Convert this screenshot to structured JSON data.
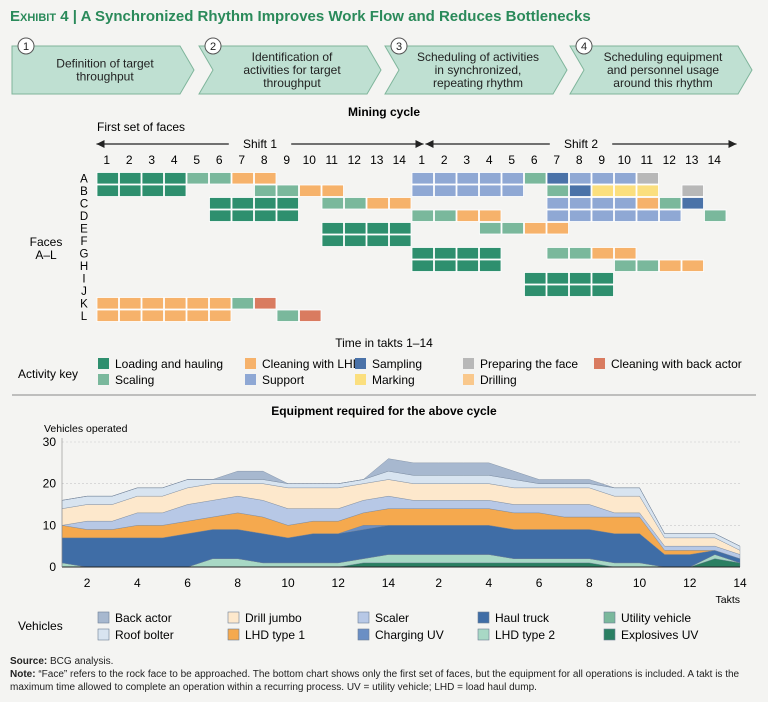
{
  "header": {
    "exhibit": "Exhibit 4",
    "separator": "|",
    "title": "A Synchronized Rhythm Improves Work Flow and Reduces Bottlenecks"
  },
  "steps": [
    {
      "num": "1",
      "text": [
        "Definition of target",
        "throughput"
      ]
    },
    {
      "num": "2",
      "text": [
        "Identification of",
        "activities for target",
        "throughput"
      ]
    },
    {
      "num": "3",
      "text": [
        "Scheduling of activities",
        "in synchronized,",
        "repeating rhythm"
      ]
    },
    {
      "num": "4",
      "text": [
        "Scheduling equipment",
        "and personnel usage",
        "around this rhythm"
      ]
    }
  ],
  "gantt": {
    "title": "Mining cycle",
    "first_set": "First set of faces",
    "shift1": "Shift 1",
    "shift2": "Shift 2",
    "faces": [
      "A",
      "B",
      "C",
      "D",
      "E",
      "F",
      "G",
      "H",
      "I",
      "J",
      "K",
      "L"
    ],
    "faces_label": [
      "Faces",
      "A–L"
    ],
    "takts": [
      "1",
      "2",
      "3",
      "4",
      "5",
      "6",
      "7",
      "8",
      "9",
      "10",
      "11",
      "12",
      "13",
      "14"
    ],
    "xlabel": "Time in takts 1–14",
    "activity_key_label": "Activity key",
    "colors": {
      "load": "#2e8f6e",
      "clean_lhd": "#f6b26b",
      "sampling": "#4a72a8",
      "prep": "#b8b8b8",
      "clean_back": "#d97b60",
      "scaling": "#7ab89c",
      "support": "#8fa8d4",
      "marking": "#fbdf7e",
      "drilling": "#f9c88c"
    },
    "legend": [
      {
        "key": "load",
        "label": "Loading and hauling"
      },
      {
        "key": "clean_lhd",
        "label": "Cleaning with LHD"
      },
      {
        "key": "sampling",
        "label": "Sampling"
      },
      {
        "key": "prep",
        "label": "Preparing the face"
      },
      {
        "key": "clean_back",
        "label": "Cleaning with back actor"
      },
      {
        "key": "scaling",
        "label": "Scaling"
      },
      {
        "key": "support",
        "label": "Support"
      },
      {
        "key": "marking",
        "label": "Marking"
      },
      {
        "key": "drilling",
        "label": "Drilling"
      }
    ],
    "rows": [
      [
        [
          "load",
          1,
          4
        ],
        [
          "scaling",
          5,
          6
        ],
        [
          "clean_lhd",
          7,
          8
        ],
        [
          "support",
          15,
          19
        ],
        [
          "scaling",
          20,
          20
        ],
        [
          "sampling",
          21,
          21
        ],
        [
          "support",
          22,
          25
        ],
        [
          "prep",
          25,
          25
        ]
      ],
      [
        [
          "load",
          1,
          4
        ],
        [
          "scaling",
          8,
          9
        ],
        [
          "clean_lhd",
          10,
          11
        ],
        [
          "support",
          15,
          19
        ],
        [
          "scaling",
          21,
          21
        ],
        [
          "sampling",
          22,
          22
        ],
        [
          "marking",
          23,
          25
        ],
        [
          "prep",
          27,
          27
        ]
      ],
      [
        [
          "load",
          6,
          9
        ],
        [
          "scaling",
          11,
          12
        ],
        [
          "clean_lhd",
          13,
          14
        ],
        [
          "support",
          21,
          24
        ],
        [
          "clean_lhd",
          25,
          25
        ],
        [
          "scaling",
          26,
          26
        ],
        [
          "sampling",
          27,
          27
        ]
      ],
      [
        [
          "load",
          6,
          9
        ],
        [
          "scaling",
          15,
          16
        ],
        [
          "clean_lhd",
          17,
          18
        ],
        [
          "support",
          21,
          26
        ],
        [
          "scaling",
          28,
          28
        ]
      ],
      [
        [
          "load",
          11,
          14
        ],
        [
          "scaling",
          18,
          19
        ],
        [
          "clean_lhd",
          20,
          21
        ]
      ],
      [
        [
          "load",
          11,
          14
        ]
      ],
      [
        [
          "load",
          15,
          18
        ],
        [
          "scaling",
          21,
          22
        ],
        [
          "clean_lhd",
          23,
          24
        ]
      ],
      [
        [
          "load",
          15,
          18
        ],
        [
          "scaling",
          24,
          25
        ],
        [
          "clean_lhd",
          26,
          27
        ]
      ],
      [
        [
          "load",
          20,
          23
        ]
      ],
      [
        [
          "load",
          20,
          23
        ]
      ],
      [
        [
          "clean_lhd",
          1,
          6
        ],
        [
          "scaling",
          7,
          7
        ],
        [
          "clean_back",
          8,
          8
        ]
      ],
      [
        [
          "clean_lhd",
          1,
          6
        ],
        [
          "scaling",
          9,
          9
        ],
        [
          "clean_back",
          10,
          10
        ]
      ]
    ]
  },
  "equipment": {
    "title": "Equipment required for the above cycle",
    "ylabel": "Vehicles operated",
    "xlabel": "Takts",
    "vehicles_label": "Vehicles"
  },
  "chart_data": {
    "type": "area",
    "title": "Equipment required for the above cycle",
    "ylabel": "Vehicles operated",
    "xlabel": "Takts",
    "ylim": [
      0,
      30
    ],
    "yticks": [
      0,
      10,
      20,
      30
    ],
    "x_tick_labels": [
      "2",
      "4",
      "6",
      "8",
      "10",
      "12",
      "14",
      "2",
      "4",
      "6",
      "8",
      "10",
      "12",
      "14"
    ],
    "x": [
      1,
      2,
      3,
      4,
      5,
      6,
      7,
      8,
      9,
      10,
      11,
      12,
      13,
      14,
      15,
      16,
      17,
      18,
      19,
      20,
      21,
      22,
      23,
      24,
      25,
      26,
      27,
      28
    ],
    "stacked": true,
    "series": [
      {
        "name": "Explosives UV",
        "color": "#2a7f62",
        "values": [
          0,
          0,
          0,
          0,
          0,
          0,
          0,
          0,
          0,
          0,
          0,
          0,
          1,
          1,
          1,
          1,
          1,
          1,
          1,
          1,
          1,
          1,
          0,
          0,
          0,
          0,
          2,
          1
        ]
      },
      {
        "name": "LHD type 2",
        "color": "#a8d8c5",
        "values": [
          1,
          0,
          0,
          0,
          0,
          0,
          2,
          2,
          1,
          1,
          1,
          1,
          1,
          2,
          2,
          2,
          2,
          2,
          1,
          1,
          1,
          1,
          1,
          1,
          0,
          0,
          1,
          0
        ]
      },
      {
        "name": "Utility vehicle",
        "color": "#7ab89c",
        "values": [
          0,
          0,
          0,
          0,
          0,
          0,
          0,
          0,
          0,
          0,
          0,
          0,
          0,
          0,
          0,
          0,
          0,
          0,
          0,
          0,
          0,
          0,
          0,
          0,
          0,
          0,
          0,
          0
        ]
      },
      {
        "name": "Haul truck",
        "color": "#3f6da6",
        "values": [
          6,
          7,
          7,
          7,
          7,
          8,
          7,
          7,
          7,
          6,
          7,
          7,
          7,
          7,
          7,
          7,
          7,
          7,
          7,
          7,
          7,
          7,
          7,
          7,
          3,
          3,
          1,
          1
        ]
      },
      {
        "name": "Charging UV",
        "color": "#6b8fc4",
        "values": [
          0,
          0,
          0,
          0,
          0,
          0,
          0,
          0,
          0,
          0,
          0,
          0,
          1,
          0,
          0,
          0,
          0,
          0,
          0,
          0,
          0,
          0,
          0,
          0,
          0,
          0,
          0,
          0
        ]
      },
      {
        "name": "LHD type 1",
        "color": "#f5a94e",
        "values": [
          3,
          2,
          2,
          3,
          3,
          3,
          3,
          4,
          4,
          3,
          3,
          3,
          3,
          4,
          4,
          4,
          4,
          4,
          4,
          4,
          3,
          3,
          4,
          4,
          1,
          1,
          0,
          0
        ]
      },
      {
        "name": "Scaler",
        "color": "#b7c8e6",
        "values": [
          0,
          2,
          2,
          3,
          3,
          4,
          4,
          4,
          4,
          4,
          3,
          3,
          3,
          3,
          2,
          2,
          2,
          2,
          2,
          2,
          3,
          3,
          1,
          1,
          1,
          1,
          1,
          1
        ]
      },
      {
        "name": "Drill jumbo",
        "color": "#fde8cc",
        "values": [
          4,
          4,
          4,
          4,
          4,
          4,
          4,
          3,
          4,
          5,
          5,
          5,
          4,
          4,
          4,
          4,
          4,
          4,
          4,
          4,
          4,
          4,
          4,
          4,
          2,
          2,
          2,
          1
        ]
      },
      {
        "name": "Roof bolter",
        "color": "#d8e4f0",
        "values": [
          2,
          2,
          2,
          2,
          2,
          2,
          1,
          1,
          1,
          1,
          1,
          1,
          1,
          2,
          2,
          2,
          2,
          2,
          2,
          1,
          1,
          1,
          2,
          2,
          1,
          1,
          1,
          1
        ]
      },
      {
        "name": "Back actor",
        "color": "#a7b8cf",
        "values": [
          0,
          0,
          0,
          0,
          0,
          0,
          0,
          2,
          2,
          0,
          0,
          0,
          0,
          3,
          3,
          3,
          3,
          3,
          2,
          1,
          1,
          1,
          0,
          0,
          0,
          0,
          0,
          0
        ]
      }
    ],
    "legend_order": [
      "Back actor",
      "Roof bolter",
      "Drill jumbo",
      "LHD type 1",
      "Scaler",
      "Charging UV",
      "Haul truck",
      "LHD type 2",
      "Utility vehicle",
      "Explosives UV"
    ]
  },
  "footer": {
    "source_label": "Source:",
    "source_text": "BCG analysis.",
    "note_label": "Note:",
    "note_text": "“Face” refers to the rock face to be approached. The bottom chart shows only the first set of faces, but the equipment for all operations is included. A takt is the maximum time allowed to complete an operation within a recurring process. UV = utility vehicle; LHD = load haul dump."
  }
}
